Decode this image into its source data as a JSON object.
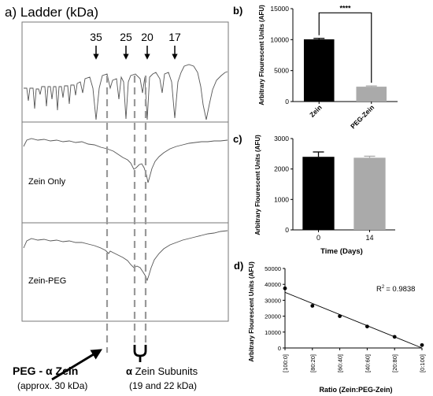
{
  "panel_a": {
    "title": "a) Ladder (kDa)",
    "ladder_markers": [
      "35",
      "25",
      "20",
      "17"
    ],
    "row_labels": [
      "Zein Only",
      "Zein-PEG"
    ],
    "annotation_left": {
      "line1_prefix": "PEG - ",
      "greek": "α",
      "line1_suffix": " Zein",
      "line2": "(approx. 30 kDa)"
    },
    "annotation_right": {
      "greek": "α",
      "line1_suffix": " Zein Subunits",
      "line2": "(19 and 22 kDa)"
    }
  },
  "chart_data": [
    {
      "id": "b",
      "panel_label": "b)",
      "type": "bar",
      "categories": [
        "Zein",
        "PEG-Zein"
      ],
      "values": [
        10050,
        2400
      ],
      "errors": [
        150,
        120
      ],
      "colors": [
        "#000000",
        "#aaaaaa"
      ],
      "ylabel": "Arbitrary Flourescent Units (AFU)",
      "xlabel": "",
      "ylim": [
        0,
        15000
      ],
      "yticks": [
        "0",
        "5000",
        "10000",
        "15000"
      ],
      "significance": "****"
    },
    {
      "id": "c",
      "panel_label": "c)",
      "type": "bar",
      "categories": [
        "0",
        "14"
      ],
      "values": [
        2400,
        2370
      ],
      "errors": [
        160,
        50
      ],
      "colors": [
        "#000000",
        "#aaaaaa"
      ],
      "ylabel": "Arbitrary Flourescent Units (AFU)",
      "xlabel": "Time (Days)",
      "ylim": [
        0,
        3000
      ],
      "yticks": [
        "0",
        "1000",
        "2000",
        "3000"
      ]
    },
    {
      "id": "d",
      "panel_label": "d)",
      "type": "scatter",
      "categories": [
        "[100:0]",
        "[80:20]",
        "[60:40]",
        "[40:60]",
        "[20:80]",
        "[0:100]"
      ],
      "values": [
        37500,
        26500,
        20000,
        13500,
        7000,
        1800
      ],
      "ylabel": "Arbitrary Flourescent Units (AFU)",
      "xlabel": "Ratio (Zein:PEG-Zein)",
      "ylim": [
        0,
        50000
      ],
      "yticks": [
        "0",
        "10000",
        "20000",
        "30000",
        "40000",
        "50000"
      ],
      "fit_line": [
        35000,
        0
      ],
      "r2_label": "R",
      "r2_sup": "2",
      "r2_value": "= 0.9838"
    }
  ]
}
